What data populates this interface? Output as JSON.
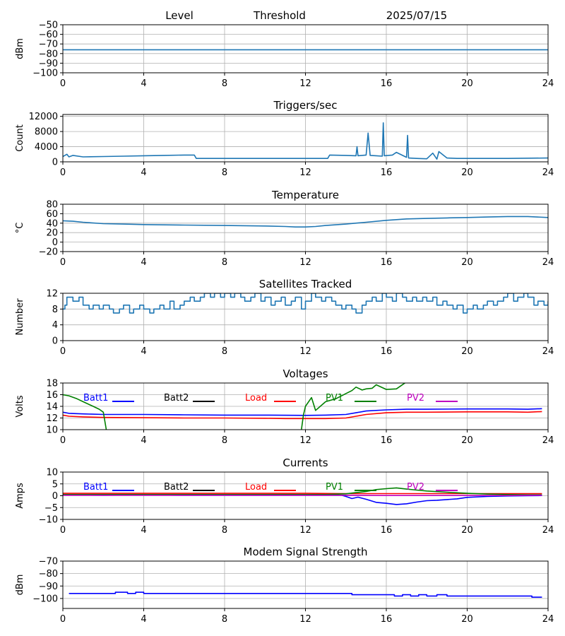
{
  "header": {
    "level": "Level",
    "threshold": "Threshold",
    "date": "2025/07/15"
  },
  "chart_data": [
    {
      "type": "line",
      "title": "",
      "xlabel": "",
      "ylabel": "dBm",
      "xlim": [
        0,
        24
      ],
      "ylim": [
        -100,
        -50
      ],
      "xticks": [
        0,
        4,
        8,
        12,
        16,
        20,
        24
      ],
      "xtick_labels": [
        "0",
        "4",
        "8",
        "12",
        "16",
        "20",
        "24"
      ],
      "yticks": [
        -100,
        -90,
        -80,
        -70,
        -60,
        -50
      ],
      "ytick_labels": [
        "−100",
        "−90",
        "−80",
        "−70",
        "−60",
        "−50"
      ],
      "grid": true,
      "series": [
        {
          "color": "#1f77b4",
          "x": [
            0,
            2,
            4,
            6,
            8,
            10,
            12,
            13,
            14,
            16,
            18,
            20,
            22,
            24
          ],
          "y": [
            -76,
            -76,
            -76,
            -76,
            -76,
            -76,
            -76,
            -76,
            -76,
            -76,
            -76,
            -76,
            -76,
            -76
          ]
        }
      ]
    },
    {
      "type": "line",
      "title": "Triggers/sec",
      "xlabel": "",
      "ylabel": "Count",
      "xlim": [
        0,
        24
      ],
      "ylim": [
        0,
        12500
      ],
      "xticks": [
        0,
        4,
        8,
        12,
        16,
        20,
        24
      ],
      "xtick_labels": [
        "0",
        "4",
        "8",
        "12",
        "16",
        "20",
        "24"
      ],
      "yticks": [
        0,
        4000,
        8000,
        12000
      ],
      "ytick_labels": [
        "0",
        "4000",
        "8000",
        "12000"
      ],
      "grid": true,
      "series": [
        {
          "color": "#1f77b4",
          "x": [
            0,
            0.2,
            0.3,
            0.5,
            1,
            2,
            3,
            4,
            5,
            6,
            6.5,
            6.6,
            8,
            10,
            12,
            13.1,
            13.2,
            14,
            14.5,
            14.55,
            14.6,
            15,
            15.1,
            15.2,
            15.5,
            15.8,
            15.85,
            15.9,
            16.3,
            16.5,
            17,
            17.05,
            17.1,
            17.5,
            18,
            18.3,
            18.5,
            18.6,
            19,
            19.5,
            20,
            22,
            24
          ],
          "y": [
            1400,
            2000,
            1300,
            1700,
            1300,
            1400,
            1500,
            1600,
            1700,
            1800,
            1800,
            900,
            900,
            900,
            900,
            900,
            1800,
            1700,
            1600,
            4000,
            1600,
            1800,
            7600,
            1700,
            1600,
            1500,
            10300,
            1600,
            1800,
            2500,
            1200,
            7000,
            1000,
            900,
            800,
            2300,
            700,
            2700,
            1000,
            900,
            900,
            900,
            1000
          ]
        }
      ]
    },
    {
      "type": "line",
      "title": "Temperature",
      "xlabel": "",
      "ylabel": "°C",
      "xlim": [
        0,
        24
      ],
      "ylim": [
        -20,
        80
      ],
      "xticks": [
        0,
        4,
        8,
        12,
        16,
        20,
        24
      ],
      "xtick_labels": [
        "0",
        "4",
        "8",
        "12",
        "16",
        "20",
        "24"
      ],
      "yticks": [
        -20,
        0,
        20,
        40,
        60,
        80
      ],
      "ytick_labels": [
        "−20",
        "0",
        "20",
        "40",
        "60",
        "80"
      ],
      "grid": true,
      "series": [
        {
          "color": "#1f77b4",
          "x": [
            0,
            0.5,
            1,
            2,
            3,
            4,
            6,
            8,
            10,
            11,
            11.5,
            12,
            12.5,
            13,
            14,
            15,
            16,
            17,
            18,
            19,
            20,
            21,
            22,
            23,
            24
          ],
          "y": [
            45,
            44,
            42,
            39,
            38,
            37,
            36,
            35,
            34,
            33,
            32,
            32,
            33,
            35,
            38,
            42,
            46,
            49,
            50,
            51,
            52,
            53,
            54,
            54,
            52
          ]
        }
      ]
    },
    {
      "type": "line",
      "title": "Satellites Tracked",
      "xlabel": "",
      "ylabel": "Number",
      "xlim": [
        0,
        24
      ],
      "ylim": [
        0,
        12
      ],
      "xticks": [
        0,
        4,
        8,
        12,
        16,
        20,
        24
      ],
      "xtick_labels": [
        "0",
        "4",
        "8",
        "12",
        "16",
        "20",
        "24"
      ],
      "yticks": [
        0,
        4,
        8,
        12
      ],
      "ytick_labels": [
        "0",
        "4",
        "8",
        "12"
      ],
      "grid": true,
      "series": [
        {
          "color": "#1f77b4",
          "step": true,
          "x": [
            0,
            0.1,
            0.2,
            0.5,
            0.8,
            1,
            1.3,
            1.5,
            1.8,
            2,
            2.3,
            2.5,
            2.8,
            3,
            3.3,
            3.5,
            3.8,
            4,
            4.3,
            4.5,
            4.8,
            5,
            5.3,
            5.5,
            5.8,
            6,
            6.3,
            6.5,
            6.8,
            7,
            7.3,
            7.5,
            7.8,
            8,
            8.3,
            8.5,
            8.8,
            9,
            9.3,
            9.5,
            9.8,
            10,
            10.3,
            10.5,
            10.8,
            11,
            11.3,
            11.5,
            11.8,
            12,
            12.3,
            12.5,
            12.8,
            13,
            13.3,
            13.5,
            13.8,
            14,
            14.3,
            14.5,
            14.8,
            15,
            15.3,
            15.5,
            15.8,
            16,
            16.3,
            16.5,
            16.8,
            17,
            17.3,
            17.5,
            17.8,
            18,
            18.3,
            18.5,
            18.8,
            19,
            19.3,
            19.5,
            19.8,
            20,
            20.3,
            20.5,
            20.8,
            21,
            21.3,
            21.5,
            21.8,
            22,
            22.3,
            22.5,
            22.8,
            23,
            23.3,
            23.5,
            23.8,
            24
          ],
          "y": [
            8,
            9,
            11,
            10,
            11,
            9,
            8,
            9,
            8,
            9,
            8,
            7,
            8,
            9,
            7,
            8,
            9,
            8,
            7,
            8,
            9,
            8,
            10,
            8,
            9,
            10,
            11,
            10,
            11,
            12,
            11,
            12,
            11,
            12,
            11,
            12,
            11,
            10,
            11,
            12,
            10,
            11,
            9,
            10,
            11,
            9,
            10,
            11,
            8,
            10,
            12,
            11,
            10,
            11,
            10,
            9,
            8,
            9,
            8,
            7,
            9,
            10,
            11,
            10,
            12,
            11,
            10,
            12,
            11,
            10,
            11,
            10,
            11,
            10,
            11,
            9,
            10,
            9,
            8,
            9,
            7,
            8,
            9,
            8,
            9,
            10,
            9,
            10,
            11,
            12,
            10,
            11,
            12,
            11,
            9,
            10,
            9,
            10
          ]
        }
      ]
    },
    {
      "type": "line",
      "title": "Voltages",
      "xlabel": "",
      "ylabel": "Volts",
      "xlim": [
        0,
        24
      ],
      "ylim": [
        10,
        18
      ],
      "xticks": [
        0,
        4,
        8,
        12,
        16,
        20,
        24
      ],
      "xtick_labels": [
        "0",
        "4",
        "8",
        "12",
        "16",
        "20",
        "24"
      ],
      "yticks": [
        10,
        12,
        14,
        16,
        18
      ],
      "ytick_labels": [
        "10",
        "12",
        "14",
        "16",
        "18"
      ],
      "grid": true,
      "legend": "inline-top",
      "series": [
        {
          "name": "Batt1",
          "color": "#0000ff",
          "x": [
            0,
            0.3,
            1,
            2,
            4,
            6,
            8,
            10,
            12,
            13,
            14,
            14.5,
            15,
            16,
            17,
            18,
            20,
            22,
            23,
            23.7
          ],
          "y": [
            13.0,
            12.8,
            12.7,
            12.6,
            12.6,
            12.55,
            12.5,
            12.5,
            12.45,
            12.5,
            12.6,
            12.9,
            13.2,
            13.4,
            13.5,
            13.5,
            13.55,
            13.55,
            13.5,
            13.6
          ]
        },
        {
          "name": "Batt2",
          "color": "#000000",
          "x": [],
          "y": []
        },
        {
          "name": "Load",
          "color": "#ff0000",
          "x": [
            0,
            0.3,
            1,
            2,
            4,
            6,
            8,
            10,
            11,
            12,
            13,
            14,
            14.5,
            15,
            16,
            17,
            18,
            20,
            22,
            23,
            23.7
          ],
          "y": [
            12.5,
            12.3,
            12.2,
            12.1,
            12.05,
            12.0,
            12.0,
            11.95,
            11.9,
            11.9,
            11.9,
            12.0,
            12.3,
            12.6,
            12.9,
            13.0,
            13.0,
            13.05,
            13.05,
            13.0,
            13.1
          ]
        },
        {
          "name": "PV1",
          "color": "#008000",
          "x": [
            0,
            0.3,
            0.7,
            1,
            1.5,
            1.8,
            2,
            2.1,
            2.15,
            "break",
            11.8,
            11.9,
            12,
            12.3,
            12.5,
            13,
            13.5,
            14,
            14.3,
            14.5,
            14.8,
            15,
            15.3,
            15.5,
            16,
            16.5,
            17
          ],
          "y": [
            16.0,
            15.8,
            15.3,
            14.8,
            14.0,
            13.5,
            13.0,
            11.0,
            10.0,
            "break",
            10.0,
            12.5,
            14.0,
            15.5,
            13.3,
            14.8,
            15.3,
            16.2,
            16.7,
            17.3,
            16.8,
            17.0,
            17.1,
            17.7,
            16.9,
            17.0,
            18.2
          ]
        },
        {
          "name": "PV2",
          "color": "#bf00bf",
          "x": [],
          "y": []
        }
      ]
    },
    {
      "type": "line",
      "title": "Currents",
      "xlabel": "",
      "ylabel": "Amps",
      "xlim": [
        0,
        24
      ],
      "ylim": [
        -10,
        10
      ],
      "xticks": [
        0,
        4,
        8,
        12,
        16,
        20,
        24
      ],
      "xtick_labels": [
        "0",
        "4",
        "8",
        "12",
        "16",
        "20",
        "24"
      ],
      "yticks": [
        -10,
        -5,
        0,
        5,
        10
      ],
      "ytick_labels": [
        "−10",
        "−5",
        "0",
        "5",
        "10"
      ],
      "grid": true,
      "legend": "inline-top",
      "series": [
        {
          "name": "Batt1",
          "color": "#0000ff",
          "x": [
            0,
            2,
            4,
            6,
            8,
            10,
            12,
            13,
            13.8,
            14,
            14.3,
            14.6,
            15,
            15.5,
            16,
            16.5,
            17,
            17.5,
            18,
            18.5,
            19,
            19.5,
            20,
            21,
            22,
            23,
            23.7
          ],
          "y": [
            0.3,
            0.2,
            0.3,
            0.2,
            0.2,
            0.2,
            0.2,
            0.2,
            0.2,
            -0.3,
            -1.2,
            -0.6,
            -1.5,
            -2.8,
            -3.2,
            -3.7,
            -3.4,
            -2.7,
            -2.1,
            -1.9,
            -1.6,
            -1.3,
            -0.7,
            -0.3,
            -0.1,
            0.0,
            0.1
          ]
        },
        {
          "name": "Batt2",
          "color": "#000000",
          "x": [],
          "y": []
        },
        {
          "name": "Load",
          "color": "#ff0000",
          "x": [
            0,
            2,
            4,
            6,
            8,
            10,
            12,
            14,
            16,
            18,
            20,
            22,
            23.7
          ],
          "y": [
            1.0,
            1.0,
            1.0,
            1.0,
            1.0,
            1.0,
            1.0,
            0.9,
            0.9,
            0.9,
            0.9,
            0.9,
            0.9
          ]
        },
        {
          "name": "PV1",
          "color": "#008000",
          "x": [
            0,
            2,
            4,
            6,
            8,
            10,
            12,
            13,
            14,
            14.5,
            15,
            15.5,
            16,
            16.5,
            17,
            17.5,
            18,
            19,
            20,
            21,
            22,
            23,
            23.7
          ],
          "y": [
            0.5,
            0.5,
            0.5,
            0.5,
            0.5,
            0.5,
            0.5,
            0.5,
            0.8,
            1.3,
            1.8,
            2.6,
            3.0,
            3.3,
            2.8,
            2.4,
            2.0,
            1.5,
            1.0,
            0.7,
            0.5,
            0.4,
            0.4
          ]
        },
        {
          "name": "PV2",
          "color": "#bf00bf",
          "x": [
            0,
            2,
            4,
            6,
            8,
            10,
            12,
            14,
            16,
            18,
            20,
            22,
            23.7
          ],
          "y": [
            0.2,
            0.2,
            0.2,
            0.2,
            0.2,
            0.2,
            0.2,
            0.2,
            0.1,
            0.1,
            0.1,
            0.1,
            0.2
          ]
        }
      ]
    },
    {
      "type": "line",
      "title": "Modem Signal Strength",
      "xlabel": "",
      "ylabel": "dBm",
      "xlim": [
        0,
        24
      ],
      "ylim": [
        -108,
        -70
      ],
      "xticks": [
        0,
        4,
        8,
        12,
        16,
        20,
        24
      ],
      "xtick_labels": [
        "0",
        "4",
        "8",
        "12",
        "16",
        "20",
        "24"
      ],
      "yticks": [
        -100,
        -90,
        -80,
        -70
      ],
      "ytick_labels": [
        "−100",
        "−90",
        "−80",
        "−70"
      ],
      "grid": true,
      "series": [
        {
          "color": "#0000ff",
          "step": true,
          "x": [
            0.3,
            1.5,
            2.2,
            2.6,
            3.2,
            3.6,
            4.0,
            6,
            8,
            10,
            12,
            13.8,
            14.3,
            16,
            16.4,
            16.8,
            17.2,
            17.6,
            18,
            18.5,
            19,
            19.6,
            20,
            22,
            23.2,
            23.7
          ],
          "y": [
            -96,
            -96,
            -96,
            -95,
            -96,
            -95,
            -96,
            -96,
            -96,
            -96,
            -96,
            -96,
            -97,
            -97,
            -98,
            -97,
            -98,
            -97,
            -98,
            -97,
            -98,
            -98,
            -98,
            -98,
            -99,
            -99
          ]
        }
      ]
    }
  ]
}
